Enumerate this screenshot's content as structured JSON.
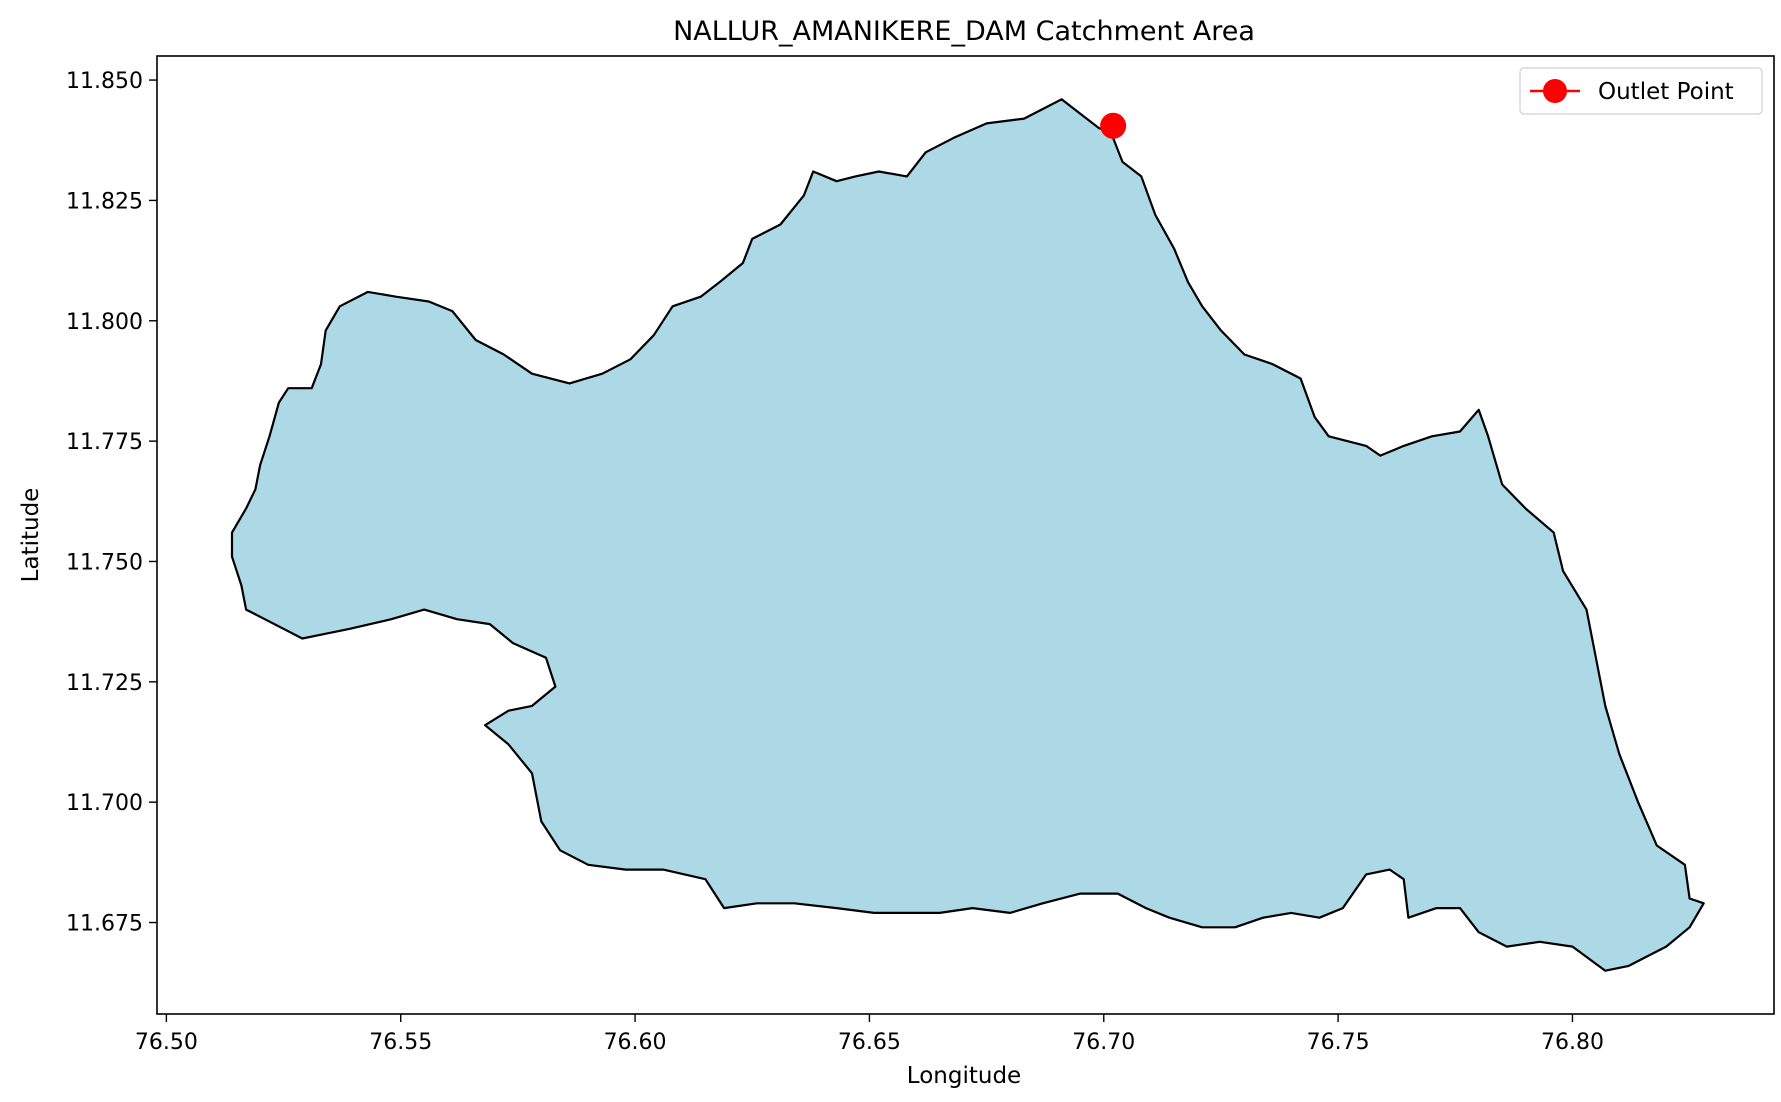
{
  "chart_data": {
    "type": "map",
    "title": "NALLUR_AMANIKERE_DAM Catchment Area",
    "xlabel": "Longitude",
    "ylabel": "Latitude",
    "xlim": [
      76.498,
      76.843
    ],
    "ylim": [
      11.656,
      11.855
    ],
    "x_ticks": [
      76.5,
      76.55,
      76.6,
      76.65,
      76.7,
      76.75,
      76.8
    ],
    "x_tick_labels": [
      "76.50",
      "76.55",
      "76.60",
      "76.65",
      "76.70",
      "76.75",
      "76.80"
    ],
    "y_ticks": [
      11.675,
      11.7,
      11.725,
      11.75,
      11.775,
      11.8,
      11.825,
      11.85
    ],
    "y_tick_labels": [
      "11.675",
      "11.700",
      "11.725",
      "11.750",
      "11.775",
      "11.800",
      "11.825",
      "11.850"
    ],
    "grid": false,
    "legend_position": "top-right",
    "catchment": {
      "fill_color": "#add8e6",
      "edge_color": "#000000",
      "boundary": [
        [
          76.7015,
          11.8392
        ],
        [
          76.704,
          11.833
        ],
        [
          76.708,
          11.83
        ],
        [
          76.711,
          11.822
        ],
        [
          76.715,
          11.815
        ],
        [
          76.718,
          11.808
        ],
        [
          76.721,
          11.803
        ],
        [
          76.725,
          11.798
        ],
        [
          76.73,
          11.793
        ],
        [
          76.736,
          11.791
        ],
        [
          76.742,
          11.788
        ],
        [
          76.745,
          11.78
        ],
        [
          76.748,
          11.776
        ],
        [
          76.756,
          11.774
        ],
        [
          76.759,
          11.772
        ],
        [
          76.764,
          11.774
        ],
        [
          76.77,
          11.776
        ],
        [
          76.776,
          11.777
        ],
        [
          76.78,
          11.7815
        ],
        [
          76.782,
          11.776
        ],
        [
          76.785,
          11.766
        ],
        [
          76.79,
          11.761
        ],
        [
          76.796,
          11.756
        ],
        [
          76.798,
          11.748
        ],
        [
          76.803,
          11.74
        ],
        [
          76.805,
          11.73
        ],
        [
          76.807,
          11.72
        ],
        [
          76.81,
          11.71
        ],
        [
          76.814,
          11.7
        ],
        [
          76.818,
          11.691
        ],
        [
          76.824,
          11.687
        ],
        [
          76.825,
          11.68
        ],
        [
          76.828,
          11.679
        ],
        [
          76.825,
          11.674
        ],
        [
          76.82,
          11.67
        ],
        [
          76.812,
          11.666
        ],
        [
          76.807,
          11.665
        ],
        [
          76.8,
          11.67
        ],
        [
          76.793,
          11.671
        ],
        [
          76.786,
          11.67
        ],
        [
          76.78,
          11.673
        ],
        [
          76.776,
          11.678
        ],
        [
          76.771,
          11.678
        ],
        [
          76.765,
          11.676
        ],
        [
          76.764,
          11.684
        ],
        [
          76.761,
          11.686
        ],
        [
          76.756,
          11.685
        ],
        [
          76.751,
          11.678
        ],
        [
          76.746,
          11.676
        ],
        [
          76.74,
          11.677
        ],
        [
          76.734,
          11.676
        ],
        [
          76.728,
          11.674
        ],
        [
          76.721,
          11.674
        ],
        [
          76.714,
          11.676
        ],
        [
          76.709,
          11.678
        ],
        [
          76.703,
          11.681
        ],
        [
          76.695,
          11.681
        ],
        [
          76.687,
          11.679
        ],
        [
          76.68,
          11.677
        ],
        [
          76.672,
          11.678
        ],
        [
          76.665,
          11.677
        ],
        [
          76.658,
          11.677
        ],
        [
          76.651,
          11.677
        ],
        [
          76.643,
          11.678
        ],
        [
          76.634,
          11.679
        ],
        [
          76.626,
          11.679
        ],
        [
          76.619,
          11.678
        ],
        [
          76.615,
          11.684
        ],
        [
          76.606,
          11.686
        ],
        [
          76.598,
          11.686
        ],
        [
          76.59,
          11.687
        ],
        [
          76.584,
          11.69
        ],
        [
          76.58,
          11.696
        ],
        [
          76.578,
          11.706
        ],
        [
          76.573,
          11.712
        ],
        [
          76.568,
          11.716
        ],
        [
          76.573,
          11.719
        ],
        [
          76.578,
          11.72
        ],
        [
          76.583,
          11.724
        ],
        [
          76.581,
          11.73
        ],
        [
          76.574,
          11.733
        ],
        [
          76.569,
          11.737
        ],
        [
          76.562,
          11.738
        ],
        [
          76.555,
          11.74
        ],
        [
          76.548,
          11.738
        ],
        [
          76.539,
          11.736
        ],
        [
          76.529,
          11.734
        ],
        [
          76.521,
          11.738
        ],
        [
          76.517,
          11.74
        ],
        [
          76.516,
          11.745
        ],
        [
          76.514,
          11.751
        ],
        [
          76.514,
          11.756
        ],
        [
          76.517,
          11.761
        ],
        [
          76.519,
          11.765
        ],
        [
          76.52,
          11.77
        ],
        [
          76.522,
          11.776
        ],
        [
          76.524,
          11.783
        ],
        [
          76.526,
          11.786
        ],
        [
          76.531,
          11.786
        ],
        [
          76.533,
          11.791
        ],
        [
          76.534,
          11.798
        ],
        [
          76.537,
          11.803
        ],
        [
          76.543,
          11.806
        ],
        [
          76.549,
          11.805
        ],
        [
          76.556,
          11.804
        ],
        [
          76.561,
          11.802
        ],
        [
          76.566,
          11.796
        ],
        [
          76.572,
          11.793
        ],
        [
          76.578,
          11.789
        ],
        [
          76.586,
          11.787
        ],
        [
          76.593,
          11.789
        ],
        [
          76.599,
          11.792
        ],
        [
          76.604,
          11.797
        ],
        [
          76.608,
          11.803
        ],
        [
          76.614,
          11.805
        ],
        [
          76.618,
          11.808
        ],
        [
          76.623,
          11.812
        ],
        [
          76.625,
          11.817
        ],
        [
          76.631,
          11.82
        ],
        [
          76.636,
          11.826
        ],
        [
          76.638,
          11.831
        ],
        [
          76.643,
          11.829
        ],
        [
          76.647,
          11.83
        ],
        [
          76.652,
          11.831
        ],
        [
          76.658,
          11.83
        ],
        [
          76.662,
          11.835
        ],
        [
          76.668,
          11.838
        ],
        [
          76.675,
          11.841
        ],
        [
          76.683,
          11.842
        ],
        [
          76.687,
          11.844
        ],
        [
          76.691,
          11.846
        ],
        [
          76.695,
          11.843
        ],
        [
          76.699,
          11.84
        ],
        [
          76.7015,
          11.8392
        ]
      ]
    },
    "outlet": {
      "name": "Outlet Point",
      "x": 76.702,
      "y": 11.8405,
      "color": "#ff0000"
    }
  }
}
